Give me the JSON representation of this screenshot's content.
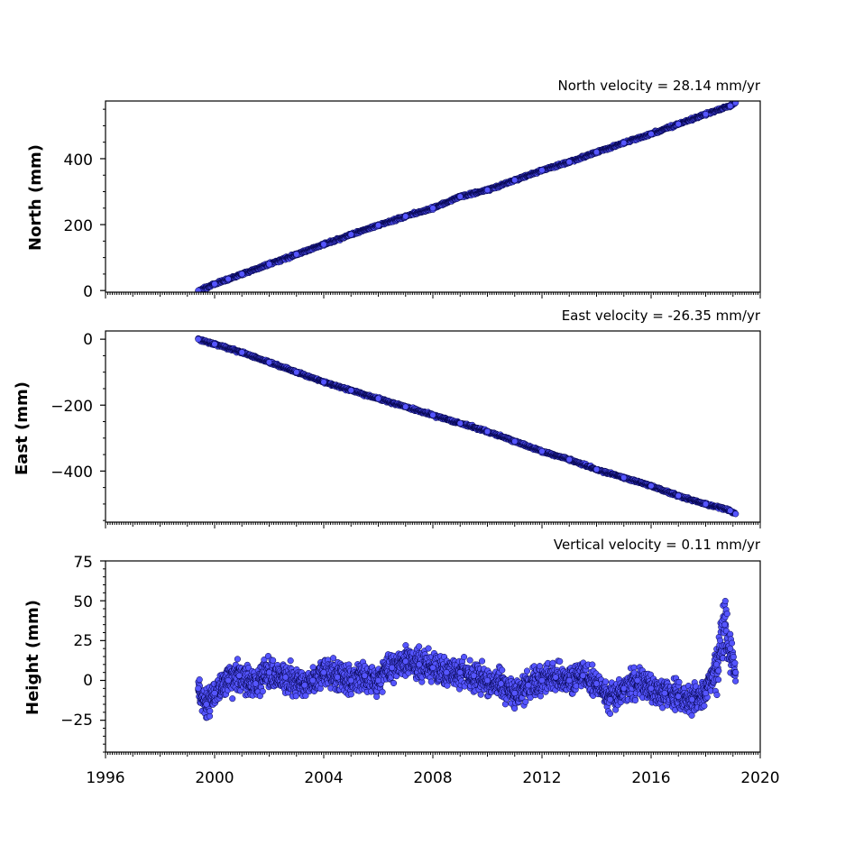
{
  "chart_data": [
    {
      "type": "scatter",
      "title": "North velocity = 28.14 mm/yr",
      "ylabel": "North (mm)",
      "xlim": [
        1996,
        2020
      ],
      "ylim": [
        -5,
        575
      ],
      "yticks": [
        0,
        200,
        400
      ],
      "ytick_labels": [
        "0",
        "200",
        "400"
      ],
      "series": [
        {
          "marker_color": "#5555ff",
          "edge_color": "#000044",
          "x": [
            1999.4,
            2000.0,
            2000.5,
            2001.0,
            2002.0,
            2003.0,
            2004.0,
            2005.0,
            2006.0,
            2007.0,
            2008.0,
            2009.0,
            2010.0,
            2011.0,
            2012.0,
            2013.0,
            2014.0,
            2015.0,
            2016.0,
            2017.0,
            2018.0,
            2018.9,
            2019.1
          ],
          "y": [
            0,
            20,
            35,
            50,
            80,
            110,
            140,
            170,
            198,
            225,
            250,
            285,
            305,
            335,
            365,
            390,
            420,
            448,
            475,
            505,
            535,
            560,
            570
          ]
        }
      ]
    },
    {
      "type": "scatter",
      "title": "East velocity = -26.35 mm/yr",
      "ylabel": "East (mm)",
      "xlim": [
        1996,
        2020
      ],
      "ylim": [
        -555,
        25
      ],
      "yticks": [
        0,
        -200,
        -400
      ],
      "ytick_labels": [
        "0",
        "−200",
        "−400"
      ],
      "series": [
        {
          "marker_color": "#5555ff",
          "edge_color": "#000044",
          "x": [
            1999.4,
            2000.0,
            2001.0,
            2002.0,
            2003.0,
            2004.0,
            2005.0,
            2006.0,
            2007.0,
            2008.0,
            2009.0,
            2010.0,
            2011.0,
            2012.0,
            2013.0,
            2014.0,
            2015.0,
            2016.0,
            2017.0,
            2018.0,
            2018.9,
            2019.1
          ],
          "y": [
            0,
            -15,
            -40,
            -70,
            -100,
            -130,
            -155,
            -180,
            -205,
            -230,
            -255,
            -280,
            -310,
            -340,
            -365,
            -395,
            -420,
            -445,
            -475,
            -500,
            -520,
            -530
          ]
        }
      ]
    },
    {
      "type": "scatter",
      "title": "Vertical velocity = 0.11 mm/yr",
      "ylabel": "Height (mm)",
      "xlabel": "",
      "xlim": [
        1996,
        2020
      ],
      "ylim": [
        -45,
        75
      ],
      "yticks": [
        -25,
        0,
        25,
        50,
        75
      ],
      "ytick_labels": [
        "−25",
        "0",
        "25",
        "50",
        "75"
      ],
      "xticks": [
        1996,
        2000,
        2004,
        2008,
        2012,
        2016,
        2020
      ],
      "xtick_labels": [
        "1996",
        "2000",
        "2004",
        "2008",
        "2012",
        "2016",
        "2020"
      ],
      "series": [
        {
          "marker_color": "#5555ff",
          "edge_color": "#000044",
          "x": [
            1999.4,
            1999.7,
            2000.0,
            2000.5,
            2000.9,
            2001.5,
            2002.0,
            2002.6,
            2003.3,
            2003.6,
            2004.0,
            2004.5,
            2005.0,
            2005.5,
            2006.0,
            2006.5,
            2007.0,
            2007.5,
            2008.0,
            2008.5,
            2009.0,
            2009.5,
            2010.0,
            2010.5,
            2011.0,
            2011.5,
            2012.0,
            2012.5,
            2013.0,
            2013.5,
            2014.0,
            2014.5,
            2015.0,
            2015.5,
            2016.0,
            2016.5,
            2017.0,
            2017.5,
            2018.0,
            2018.4,
            2018.7,
            2018.9,
            2019.1
          ],
          "y": [
            -5,
            -15,
            -8,
            0,
            3,
            -2,
            5,
            2,
            -3,
            0,
            5,
            2,
            0,
            3,
            0,
            8,
            12,
            10,
            8,
            5,
            5,
            3,
            0,
            -2,
            -8,
            -3,
            0,
            2,
            0,
            3,
            -2,
            -12,
            -5,
            0,
            -5,
            -8,
            -10,
            -12,
            -8,
            10,
            35,
            20,
            5
          ]
        }
      ]
    }
  ]
}
